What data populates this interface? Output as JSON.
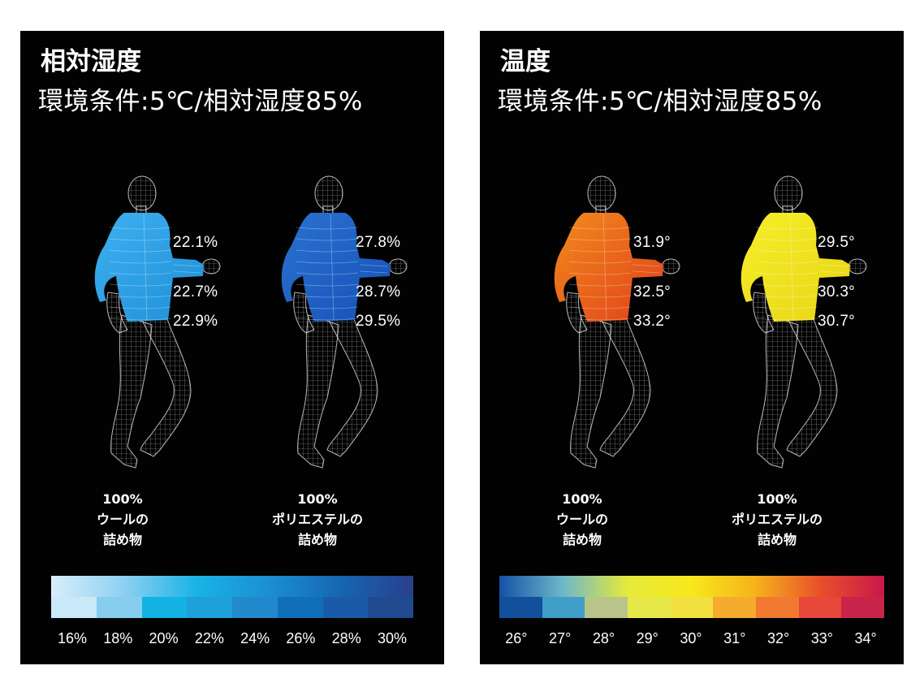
{
  "panels": [
    {
      "title": "相対湿度",
      "subtitle": "環境条件:5℃/相対湿度85%",
      "figures": [
        {
          "fill_color": "#1e8fd8",
          "fill_color_light": "#3fb0f0",
          "readings": [
            "22.1%",
            "22.7%",
            "22.9%"
          ],
          "caption": [
            "100%",
            "ウールの",
            "詰め物"
          ]
        },
        {
          "fill_color": "#1650b8",
          "fill_color_light": "#2a72d0",
          "readings": [
            "27.8%",
            "28.7%",
            "29.5%"
          ],
          "caption": [
            "100%",
            "ポリエステルの",
            "詰め物"
          ]
        }
      ],
      "legend": {
        "gradient": [
          "#d8eefa",
          "#8fd0f2",
          "#1ab3e6",
          "#1c8fd2",
          "#1566b0",
          "#2a3f8c"
        ],
        "steps": [
          "#c9e8f8",
          "#86cdf0",
          "#12b2e3",
          "#1ea0da",
          "#2289cc",
          "#0f6fb8",
          "#1a5ba8",
          "#1f4a90"
        ],
        "labels": [
          "16%",
          "18%",
          "20%",
          "22%",
          "24%",
          "26%",
          "28%",
          "30%"
        ]
      }
    },
    {
      "title": "温度",
      "subtitle": "環境条件:5℃/相対湿度85%",
      "figures": [
        {
          "fill_color": "#e0401a",
          "fill_color_light": "#f28a1c",
          "readings": [
            "31.9°",
            "32.5°",
            "33.2°"
          ],
          "caption": [
            "100%",
            "ウールの",
            "詰め物"
          ]
        },
        {
          "fill_color": "#e8d414",
          "fill_color_light": "#f6ef2a",
          "readings": [
            "29.5°",
            "30.3°",
            "30.7°"
          ],
          "caption": [
            "100%",
            "ポリエステルの",
            "詰め物"
          ]
        }
      ],
      "legend": {
        "gradient": [
          "#1452a8",
          "#6fb8c8",
          "#e6ea3a",
          "#f7e81c",
          "#f5b21c",
          "#e8502a",
          "#c8184a"
        ],
        "steps": [
          "#12509c",
          "#3f9ec8",
          "#b8c48a",
          "#e6e84a",
          "#f2e040",
          "#f6aa2e",
          "#ef7a30",
          "#e6483a",
          "#c8244a"
        ],
        "labels": [
          "26°",
          "27°",
          "28°",
          "29°",
          "30°",
          "31°",
          "32°",
          "33°",
          "34°"
        ]
      }
    }
  ]
}
